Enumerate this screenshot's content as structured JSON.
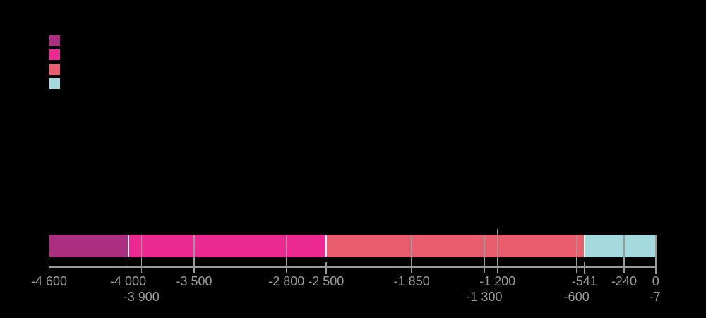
{
  "colors": {
    "background": "#000000",
    "axis": "#9a9a9a",
    "grid": "#9a9a9a",
    "label": "#9a9a9a",
    "segment_border": "#ffffff"
  },
  "legend": {
    "items": [
      {
        "name": "legend-swatch-1",
        "color": "#ab2e81"
      },
      {
        "name": "legend-swatch-2",
        "color": "#ec2990"
      },
      {
        "name": "legend-swatch-3",
        "color": "#ea5d6e"
      },
      {
        "name": "legend-swatch-4",
        "color": "#a4dadd"
      }
    ]
  },
  "chart_data": {
    "type": "bar",
    "subtype": "horizontal-timeline",
    "title": "",
    "xlabel": "",
    "ylabel": "",
    "x_domain": [
      -4600,
      0
    ],
    "grid": true,
    "legend_position": "top-left",
    "segments": [
      {
        "name": "segment-1",
        "start": -4600,
        "end": -4000,
        "color": "#ab2e81"
      },
      {
        "name": "segment-2",
        "start": -4000,
        "end": -2500,
        "color": "#ec2990"
      },
      {
        "name": "segment-3",
        "start": -2500,
        "end": -541,
        "color": "#ea5d6e"
      },
      {
        "name": "segment-4",
        "start": -541,
        "end": 0,
        "color": "#a4dadd"
      }
    ],
    "gridline_values": [
      -3900,
      -3500,
      -2800,
      -1850,
      -1300,
      -1200,
      -600,
      -240
    ],
    "annotation_line_value": -1200,
    "boundary_tick_values": [
      -4600,
      -4000,
      -2500,
      -541
    ],
    "end_line_value": 0,
    "ticks": [
      {
        "value": -4600,
        "label": "-4 600",
        "row": 1
      },
      {
        "value": -4000,
        "label": "-4 000",
        "row": 1
      },
      {
        "value": -3900,
        "label": "-3 900",
        "row": 2
      },
      {
        "value": -3500,
        "label": "-3 500",
        "row": 1
      },
      {
        "value": -2800,
        "label": "-2 800",
        "row": 1
      },
      {
        "value": -2500,
        "label": "-2 500",
        "row": 1
      },
      {
        "value": -1850,
        "label": "-1 850",
        "row": 1
      },
      {
        "value": -1300,
        "label": "-1 300",
        "row": 2
      },
      {
        "value": -1200,
        "label": "-1 200",
        "row": 1
      },
      {
        "value": -600,
        "label": "-600",
        "row": 2
      },
      {
        "value": -541,
        "label": "-541",
        "row": 1
      },
      {
        "value": -240,
        "label": "-240",
        "row": 1
      },
      {
        "value": -7,
        "label": "-7",
        "row": 2
      },
      {
        "value": 0,
        "label": "0",
        "row": 1
      }
    ]
  }
}
